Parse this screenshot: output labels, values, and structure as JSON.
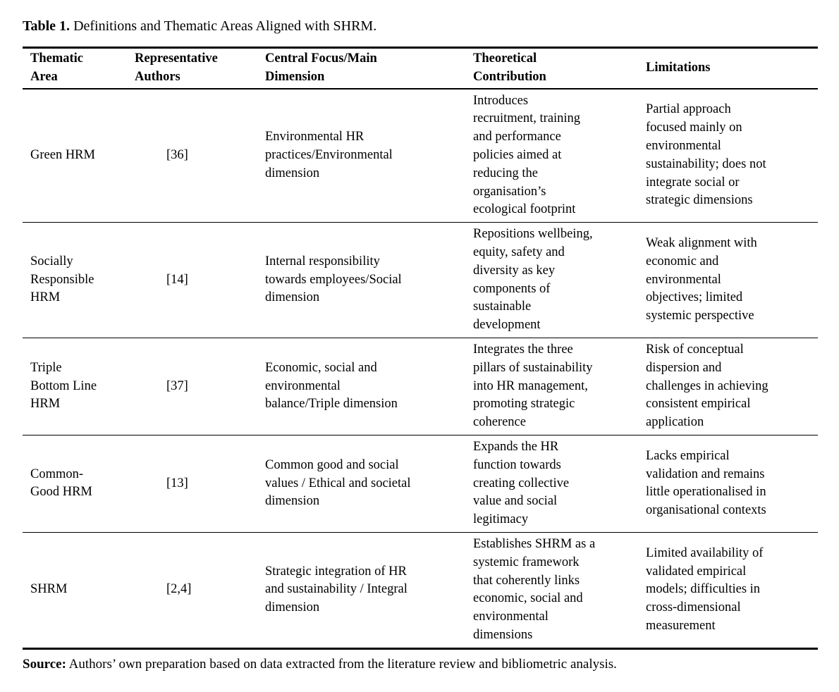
{
  "caption": {
    "label": "Table 1.",
    "text": " Definitions and Thematic Areas Aligned with SHRM."
  },
  "table": {
    "headers": {
      "thematic_area": "Thematic\nArea",
      "representative_authors": "Representative\nAuthors",
      "central_focus": "Central Focus/Main\nDimension",
      "theoretical_contribution": "Theoretical\nContribution",
      "limitations": "Limitations"
    },
    "rows": [
      {
        "thematic_area": "Green HRM",
        "authors": "[36]",
        "central_focus": "Environmental HR\npractices/Environmental\ndimension",
        "theoretical_contribution": "Introduces\nrecruitment, training\nand performance\npolicies aimed at\nreducing the\norganisation’s\necological footprint",
        "limitations": "Partial approach\nfocused mainly on\nenvironmental\nsustainability; does not\nintegrate social or\nstrategic dimensions"
      },
      {
        "thematic_area": "Socially\nResponsible\nHRM",
        "authors": "[14]",
        "central_focus": "Internal responsibility\ntowards employees/Social\ndimension",
        "theoretical_contribution": "Repositions wellbeing,\nequity, safety and\ndiversity as key\ncomponents of\nsustainable\ndevelopment",
        "limitations": "Weak alignment with\neconomic and\nenvironmental\nobjectives; limited\nsystemic perspective"
      },
      {
        "thematic_area": "Triple\nBottom Line\nHRM",
        "authors": "[37]",
        "central_focus": "Economic, social and\nenvironmental\nbalance/Triple dimension",
        "theoretical_contribution": "Integrates the three\npillars of sustainability\ninto HR management,\npromoting strategic\ncoherence",
        "limitations": "Risk of conceptual\ndispersion and\nchallenges in achieving\nconsistent empirical\napplication"
      },
      {
        "thematic_area": "Common-\nGood HRM",
        "authors": "[13]",
        "central_focus": "Common good and social\nvalues / Ethical and societal\ndimension",
        "theoretical_contribution": "Expands the HR\nfunction towards\ncreating collective\nvalue and social\nlegitimacy",
        "limitations": "Lacks empirical\nvalidation and remains\nlittle operationalised in\norganisational contexts"
      },
      {
        "thematic_area": "SHRM",
        "authors": "[2,4]",
        "central_focus": "Strategic integration of HR\nand sustainability / Integral\ndimension",
        "theoretical_contribution": "Establishes SHRM as a\nsystemic framework\nthat coherently links\neconomic, social and\nenvironmental\ndimensions",
        "limitations": "Limited availability of\nvalidated empirical\nmodels; difficulties in\ncross-dimensional\nmeasurement"
      }
    ]
  },
  "source_note": {
    "label": "Source:",
    "text": " Authors’ own preparation based on data extracted from the literature review and bibliometric analysis."
  }
}
